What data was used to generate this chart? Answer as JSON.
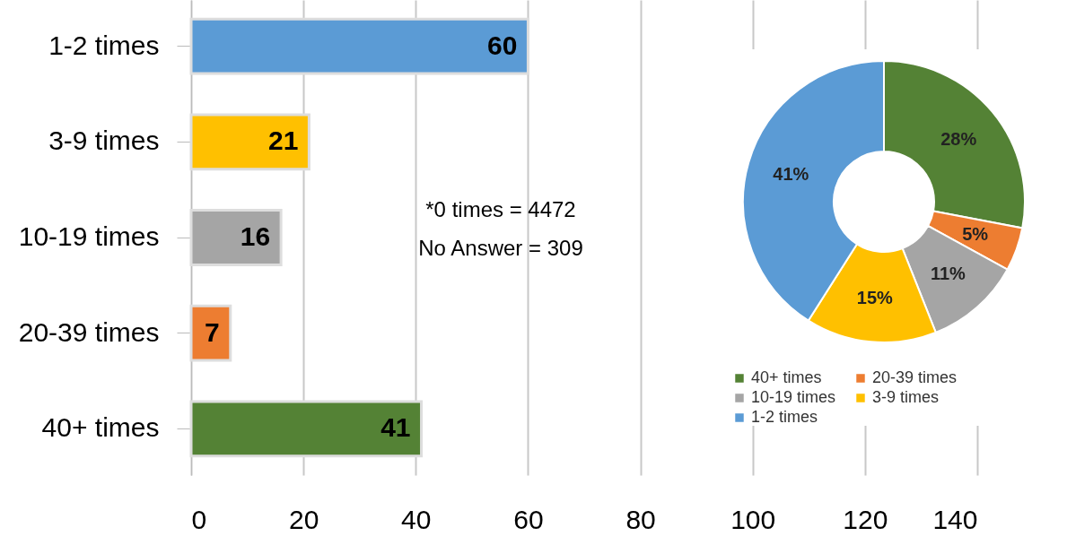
{
  "chart_data": [
    {
      "type": "bar",
      "orientation": "horizontal",
      "categories": [
        "1-2 times",
        "3-9 times",
        "10-19 times",
        "20-39 times",
        "40+ times"
      ],
      "values": [
        60,
        21,
        16,
        7,
        41
      ],
      "colors": [
        "#5b9bd5",
        "#ffc000",
        "#a5a5a5",
        "#ed7d31",
        "#548235"
      ],
      "xlim": [
        0,
        140
      ],
      "xticks": [
        0,
        20,
        40,
        60,
        80,
        100,
        120,
        140
      ],
      "grid": "x",
      "data_labels": true,
      "annotations": [
        "*0 times = 4472",
        "No Answer = 309"
      ]
    },
    {
      "type": "donut",
      "categories": [
        "40+ times",
        "20-39 times",
        "10-19 times",
        "3-9 times",
        "1-2 times"
      ],
      "values": [
        28,
        5,
        11,
        15,
        41
      ],
      "colors": [
        "#548235",
        "#ed7d31",
        "#a5a5a5",
        "#ffc000",
        "#5b9bd5"
      ],
      "value_labels": [
        "28%",
        "5%",
        "11%",
        "15%",
        "41%"
      ],
      "legend": "bottom"
    }
  ]
}
